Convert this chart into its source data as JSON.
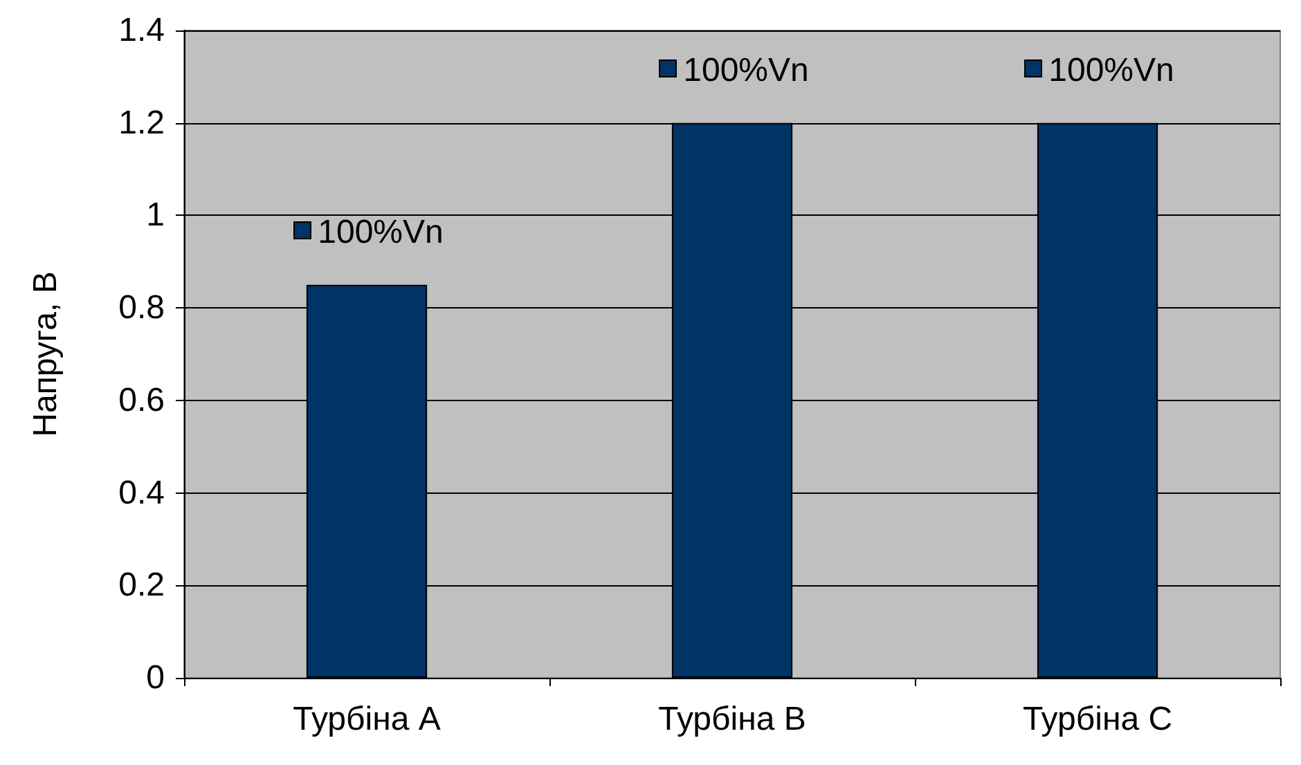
{
  "chart_data": {
    "type": "bar",
    "ylabel": "Напруга, В",
    "categories": [
      "Турбіна А",
      "Турбіна В",
      "Турбіна С"
    ],
    "series": [
      {
        "name": "100%Vn",
        "color": "#003366",
        "values": [
          0.85,
          1.2,
          1.2
        ]
      }
    ],
    "ylim": [
      0,
      1.4
    ],
    "yticks": [
      0,
      0.2,
      0.4,
      0.6,
      0.8,
      1,
      1.2,
      1.4
    ],
    "grid": "y",
    "legend": "top left"
  }
}
